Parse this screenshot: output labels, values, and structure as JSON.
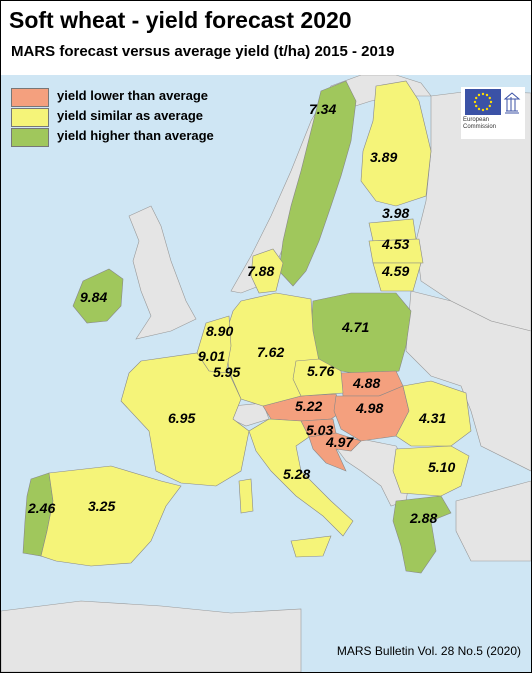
{
  "title": "Soft wheat - yield forecast 2020",
  "subtitle": "MARS forecast versus average yield (t/ha) 2015 - 2019",
  "legend": [
    {
      "label": "yield lower than average",
      "color": "#f4a07e"
    },
    {
      "label": "yield similar as average",
      "color": "#f5f479"
    },
    {
      "label": "yield higher than average",
      "color": "#a0c75c"
    }
  ],
  "logo": {
    "line1": "European",
    "line2": "Commission"
  },
  "values": {
    "sweden": "7.34",
    "finland": "3.89",
    "estonia": "3.98",
    "latvia": "4.53",
    "lithuania": "4.59",
    "denmark": "7.88",
    "ireland": "9.84",
    "netherlands": "8.90",
    "belgium": "9.01",
    "luxembourg": "5.95",
    "germany": "7.62",
    "poland": "4.71",
    "czechia": "5.76",
    "slovakia": "4.88",
    "austria": "5.22",
    "hungary": "4.98",
    "romania": "4.31",
    "slovenia": "5.03",
    "croatia": "4.97",
    "bulgaria": "5.10",
    "france": "6.95",
    "italy": "5.28",
    "portugal": "2.46",
    "spain": "3.25",
    "greece": "2.88"
  },
  "source": "MARS Bulletin Vol. 28 No.5 (2020)"
}
